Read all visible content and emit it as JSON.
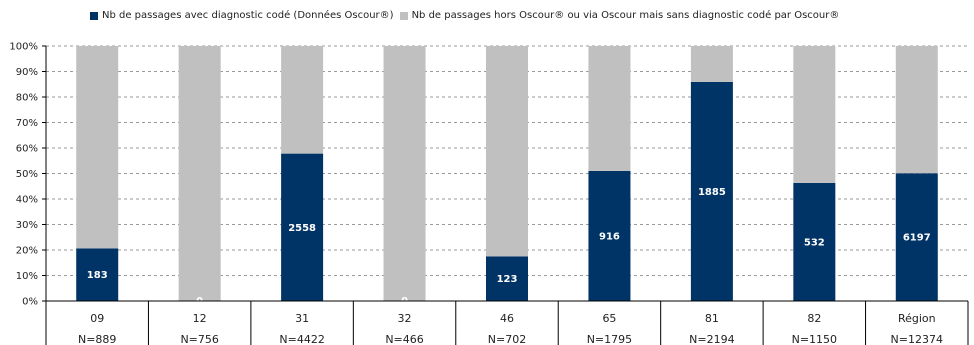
{
  "chart_data": {
    "type": "bar",
    "stacked": true,
    "percent_stacked": true,
    "categories": [
      "09",
      "12",
      "31",
      "32",
      "46",
      "65",
      "81",
      "82",
      "Région"
    ],
    "n_labels": [
      "N=889",
      "N=756",
      "N=4422",
      "N=466",
      "N=702",
      "N=1795",
      "N=2194",
      "N=1150",
      "N=12374"
    ],
    "value_labels": [
      "183",
      "0",
      "2558",
      "0",
      "123",
      "916",
      "1885",
      "532",
      "6197"
    ],
    "series": [
      {
        "name": "Nb de passages avec diagnostic codé (Données Oscour®)",
        "color": "#003366",
        "values": [
          20.6,
          0,
          57.8,
          0,
          17.5,
          51.0,
          85.9,
          46.3,
          50.1
        ]
      },
      {
        "name": "Nb de passages hors Oscour® ou via Oscour mais sans diagnostic codé par Oscour®",
        "color": "#c0c0c0",
        "values": [
          79.4,
          100,
          42.2,
          100,
          82.5,
          49.0,
          14.1,
          53.7,
          49.9
        ]
      }
    ],
    "y_ticks": [
      "0%",
      "10%",
      "20%",
      "30%",
      "40%",
      "50%",
      "60%",
      "70%",
      "80%",
      "90%",
      "100%"
    ],
    "ylim": [
      0,
      100
    ],
    "grid": true,
    "legend_position": "top"
  }
}
